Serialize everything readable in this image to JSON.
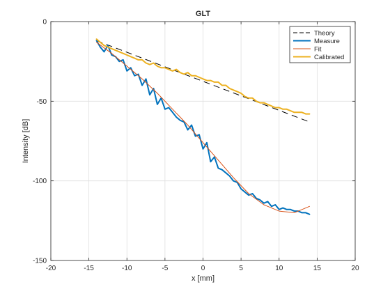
{
  "chart_data": {
    "type": "line",
    "title": "GLT",
    "xlabel": "x [mm]",
    "ylabel": "Intensity [dB]",
    "xlim": [
      -20,
      20
    ],
    "ylim": [
      -150,
      0
    ],
    "xticks": [
      -20,
      -15,
      -10,
      -5,
      0,
      5,
      10,
      15,
      20
    ],
    "yticks": [
      0,
      -50,
      -100,
      -150
    ],
    "xtick_labels": [
      "-20",
      "-15",
      "-10",
      "-5",
      "0",
      "5",
      "10",
      "15",
      "20"
    ],
    "ytick_labels": [
      "0",
      "-50",
      "-100",
      "-150"
    ],
    "grid": true,
    "legend_position": "top-right",
    "series": [
      {
        "name": "Theory",
        "color": "#000000",
        "style": "dashed",
        "width": 1,
        "x": [
          -14,
          14
        ],
        "y": [
          -12,
          -63
        ]
      },
      {
        "name": "Measure",
        "color": "#0072bd",
        "style": "solid",
        "width": 2,
        "x": [
          -14,
          -13.5,
          -13,
          -12.5,
          -12,
          -11.5,
          -11,
          -10.5,
          -10,
          -9.5,
          -9,
          -8.5,
          -8,
          -7.5,
          -7,
          -6.5,
          -6,
          -5.5,
          -5,
          -4.5,
          -4,
          -3.5,
          -3,
          -2.5,
          -2,
          -1.5,
          -1,
          -0.5,
          0,
          0.5,
          1,
          1.5,
          2,
          2.5,
          3,
          3.5,
          4,
          4.5,
          5,
          5.5,
          6,
          6.5,
          7,
          7.5,
          8,
          8.5,
          9,
          9.5,
          10,
          10.5,
          11,
          11.5,
          12,
          12.5,
          13,
          13.5,
          14
        ],
        "y": [
          -12,
          -16,
          -19,
          -15,
          -21,
          -22,
          -25,
          -24,
          -31,
          -29,
          -34,
          -33,
          -40,
          -36,
          -46,
          -42,
          -52,
          -48,
          -55,
          -54,
          -57,
          -60,
          -62,
          -63,
          -68,
          -65,
          -72,
          -71,
          -80,
          -76,
          -88,
          -85,
          -92,
          -93,
          -95,
          -97,
          -100,
          -101,
          -105,
          -107,
          -109,
          -108,
          -111,
          -112,
          -114,
          -113,
          -116,
          -115,
          -118,
          -117,
          -118,
          -118,
          -119,
          -119,
          -120,
          -120,
          -121
        ]
      },
      {
        "name": "Fit",
        "color": "#d95319",
        "style": "solid",
        "width": 1,
        "x": [
          -14,
          -12,
          -10,
          -8,
          -6,
          -4,
          -2,
          0,
          2,
          4,
          6,
          8,
          10,
          12,
          14
        ],
        "y": [
          -13,
          -20,
          -28,
          -36,
          -45,
          -55,
          -65,
          -76,
          -87,
          -98,
          -108,
          -115,
          -119,
          -120,
          -116
        ]
      },
      {
        "name": "Calibrated",
        "color": "#edb120",
        "style": "solid",
        "width": 2,
        "x": [
          -14,
          -13.5,
          -13,
          -12.5,
          -12,
          -11.5,
          -11,
          -10.5,
          -10,
          -9.5,
          -9,
          -8.5,
          -8,
          -7.5,
          -7,
          -6.5,
          -6,
          -5.5,
          -5,
          -4.5,
          -4,
          -3.5,
          -3,
          -2.5,
          -2,
          -1.5,
          -1,
          -0.5,
          0,
          0.5,
          1,
          1.5,
          2,
          2.5,
          3,
          3.5,
          4,
          4.5,
          5,
          5.5,
          6,
          6.5,
          7,
          7.5,
          8,
          8.5,
          9,
          9.5,
          10,
          10.5,
          11,
          11.5,
          12,
          12.5,
          13,
          13.5,
          14
        ],
        "y": [
          -11,
          -13,
          -15,
          -16,
          -17,
          -18,
          -19,
          -20,
          -21,
          -22,
          -23,
          -24,
          -24,
          -26,
          -27,
          -26,
          -28,
          -29,
          -29,
          -30,
          -31,
          -30,
          -32,
          -33,
          -32,
          -34,
          -34,
          -35,
          -36,
          -37,
          -37,
          -38,
          -38,
          -40,
          -40,
          -42,
          -43,
          -44,
          -45,
          -47,
          -48,
          -48,
          -50,
          -51,
          -51,
          -52,
          -53,
          -54,
          -54,
          -55,
          -55,
          -56,
          -57,
          -57,
          -57,
          -58,
          -58
        ]
      }
    ]
  }
}
